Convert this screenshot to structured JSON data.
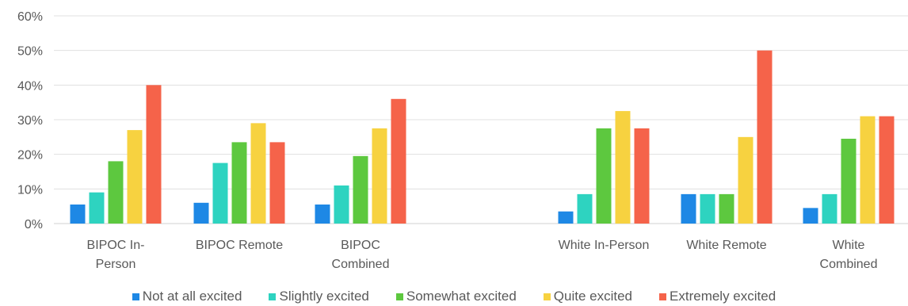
{
  "chart_data": {
    "type": "bar",
    "title": "",
    "xlabel": "",
    "ylabel": "",
    "ylim": [
      0,
      60
    ],
    "yticks": [
      "0%",
      "10%",
      "20%",
      "30%",
      "40%",
      "50%",
      "60%"
    ],
    "grid": true,
    "legend_position": "bottom",
    "categories": [
      [
        "BIPOC In-",
        "Person"
      ],
      [
        "BIPOC Remote"
      ],
      [
        "BIPOC",
        "Combined"
      ],
      [
        "White In-Person"
      ],
      [
        "White Remote"
      ],
      [
        "White",
        "Combined"
      ]
    ],
    "series": [
      {
        "name": "Not at all excited",
        "color": "#1e88e5",
        "values": [
          5.5,
          6,
          5.5,
          3.5,
          8.5,
          4.5
        ]
      },
      {
        "name": "Slightly excited",
        "color": "#2ed3c0",
        "values": [
          9,
          17.5,
          11,
          8.5,
          8.5,
          8.5
        ]
      },
      {
        "name": "Somewhat excited",
        "color": "#5dc83f",
        "values": [
          18,
          23.5,
          19.5,
          27.5,
          8.5,
          24.5
        ]
      },
      {
        "name": "Quite excited",
        "color": "#f7d240",
        "values": [
          27,
          29,
          27.5,
          32.5,
          25,
          31
        ]
      },
      {
        "name": "Extremely excited",
        "color": "#f5634a",
        "values": [
          40,
          23.5,
          36,
          27.5,
          50,
          31
        ]
      }
    ]
  }
}
